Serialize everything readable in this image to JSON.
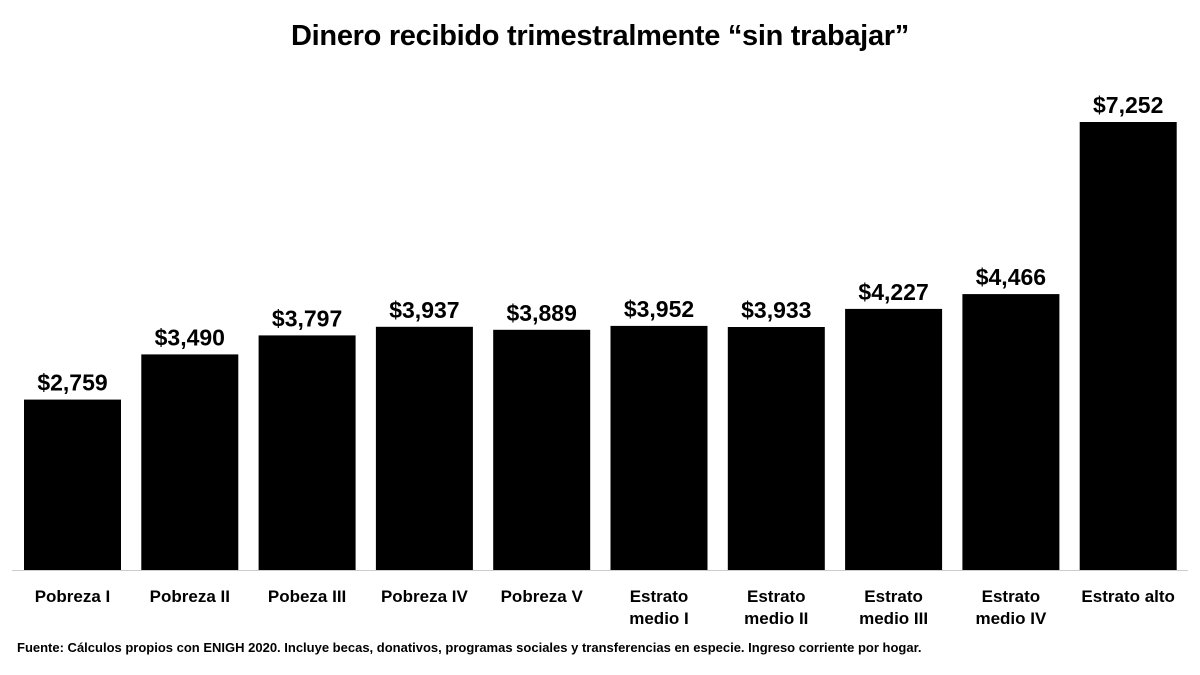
{
  "chart_data": {
    "type": "bar",
    "title": "Dinero recibido trimestralmente “sin trabajar”",
    "xlabel": "",
    "ylabel": "",
    "categories": [
      "Pobreza I",
      "Pobreza II",
      "Pobeza III",
      "Pobreza IV",
      "Pobreza V",
      "Estrato medio  I",
      "Estrato medio II",
      "Estrato medio III",
      "Estrato medio IV",
      "Estrato alto"
    ],
    "category_lines": [
      [
        "Pobreza I"
      ],
      [
        "Pobreza II"
      ],
      [
        "Pobeza III"
      ],
      [
        "Pobreza IV"
      ],
      [
        "Pobreza V"
      ],
      [
        "Estrato",
        "medio  I"
      ],
      [
        "Estrato",
        "medio II"
      ],
      [
        "Estrato",
        "medio III"
      ],
      [
        "Estrato",
        "medio IV"
      ],
      [
        "Estrato alto"
      ]
    ],
    "values": [
      2759,
      3490,
      3797,
      3937,
      3889,
      3952,
      3933,
      4227,
      4466,
      7252
    ],
    "value_labels": [
      "$2,759",
      "$3,490",
      "$3,797",
      "$3,937",
      "$3,889",
      "$3,952",
      "$3,933",
      "$4,227",
      "$4,466",
      "$7,252"
    ],
    "ylim": [
      0,
      7252
    ],
    "grid": false,
    "legend": "none",
    "bar_color": "#000000",
    "axis_color": "#cccccc"
  },
  "source_note": "Fuente: Cálculos propios con ENIGH 2020. Incluye becas, donativos, programas sociales y transferencias en especie. Ingreso corriente por hogar."
}
